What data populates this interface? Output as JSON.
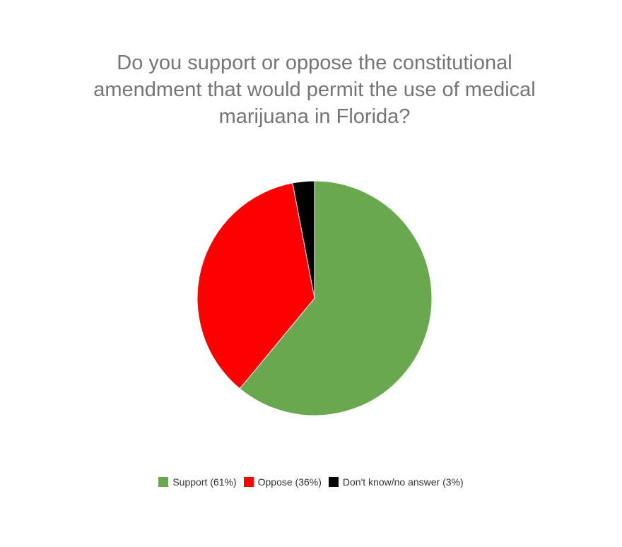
{
  "chart_data": {
    "type": "pie",
    "title": "Do you support or oppose the constitutional amendment that would permit the use of medical marijuana in Florida?",
    "title_lines": [
      "Do you support or oppose the constitutional",
      "amendment that would permit the use of medical",
      "marijuana in Florida?"
    ],
    "categories": [
      "Support",
      "Oppose",
      "Don't know/no answer"
    ],
    "values": [
      61,
      36,
      3
    ],
    "unit": "%",
    "legend": {
      "position": "bottom",
      "entries": [
        "Support (61%)",
        "Oppose (36%)",
        "Don't know/no answer (3%)"
      ]
    },
    "colors": [
      "#6aa84f",
      "#ff0000",
      "#000000"
    ],
    "start_angle_deg": 0,
    "direction": "clockwise"
  }
}
